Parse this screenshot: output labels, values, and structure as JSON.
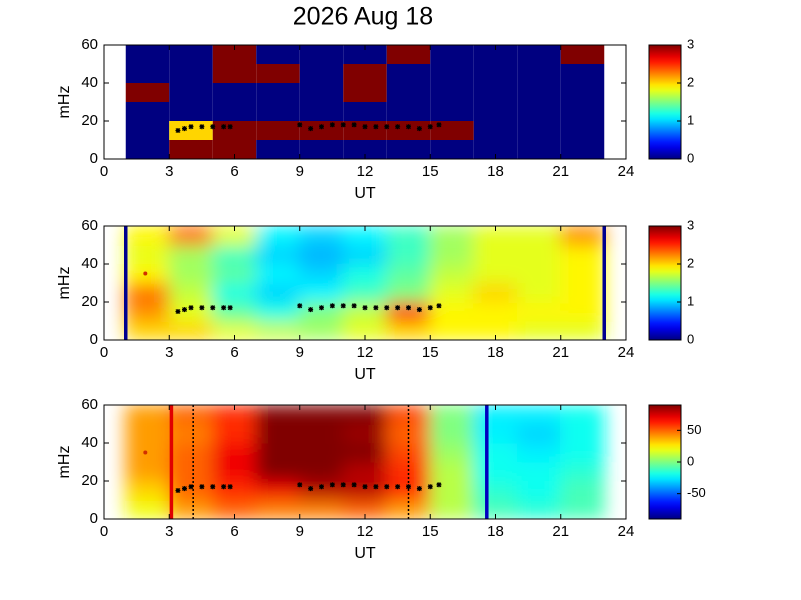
{
  "chart_data": [
    {
      "type": "heatmap",
      "title": "2026 Aug 18",
      "xlabel": "UT",
      "ylabel": "mHz",
      "xlim": [
        0,
        24
      ],
      "xticks": [
        0,
        3,
        6,
        9,
        12,
        15,
        18,
        21,
        24
      ],
      "ylim": [
        0,
        60
      ],
      "yticks": [
        0,
        20,
        40,
        60
      ],
      "clim": [
        0,
        3
      ],
      "cticks": [
        0,
        1,
        2,
        3
      ],
      "smooth": false,
      "x_edges": [
        1,
        3,
        5,
        7,
        9,
        11,
        13,
        15,
        17,
        19,
        21,
        23
      ],
      "y_edges": [
        0,
        10,
        20,
        30,
        40,
        50,
        60
      ],
      "z": [
        [
          0,
          3,
          3,
          0,
          0,
          0,
          0,
          0,
          0,
          0,
          0
        ],
        [
          0,
          2,
          3,
          3,
          3,
          3,
          3,
          3,
          0,
          0,
          0
        ],
        [
          0,
          0,
          0,
          0,
          0,
          0,
          0,
          0,
          0,
          0,
          0
        ],
        [
          3,
          0,
          0,
          0,
          0,
          3,
          0,
          0,
          0,
          0,
          0
        ],
        [
          0,
          0,
          3,
          3,
          0,
          3,
          0,
          0,
          0,
          0,
          0
        ],
        [
          0,
          0,
          3,
          0,
          0,
          0,
          3,
          0,
          0,
          0,
          3
        ]
      ],
      "trace": {
        "color": "#000000",
        "x": [
          3.4,
          3.7,
          4.0,
          4.5,
          5.0,
          5.5,
          5.8,
          7.5,
          9.0,
          9.5,
          10.0,
          10.5,
          11.0,
          11.5,
          12.0,
          12.5,
          13.0,
          13.5,
          14.0,
          14.5,
          15.0,
          15.4
        ],
        "y": [
          15,
          16,
          17,
          17,
          17,
          17,
          17,
          null,
          18,
          16,
          17,
          18,
          18,
          18,
          17,
          17,
          17,
          17,
          17,
          16,
          17,
          18
        ]
      }
    },
    {
      "type": "heatmap",
      "xlabel": "UT",
      "ylabel": "mHz",
      "xlim": [
        0,
        24
      ],
      "xticks": [
        0,
        3,
        6,
        9,
        12,
        15,
        18,
        21,
        24
      ],
      "ylim": [
        0,
        60
      ],
      "yticks": [
        0,
        20,
        40,
        60
      ],
      "clim": [
        0,
        3
      ],
      "cticks": [
        0,
        1,
        2,
        3
      ],
      "smooth": true,
      "x_edges": [
        1,
        3,
        5,
        7,
        9,
        11,
        13,
        15,
        17,
        19,
        21,
        23
      ],
      "y_edges": [
        0,
        10,
        20,
        30,
        40,
        50,
        60
      ],
      "z": [
        [
          2,
          2,
          1.8,
          1.7,
          1.6,
          1.8,
          2.0,
          1.9,
          1.9,
          1.8,
          1.8
        ],
        [
          2.2,
          1.8,
          1.4,
          1.2,
          1.5,
          1.7,
          2.6,
          1.9,
          1.9,
          1.9,
          1.9
        ],
        [
          2.3,
          1.7,
          1.2,
          1.0,
          1.1,
          1.3,
          1.5,
          1.8,
          2.0,
          1.8,
          1.9
        ],
        [
          1.9,
          1.6,
          1.4,
          1.1,
          1.0,
          1.2,
          1.4,
          1.7,
          1.8,
          1.8,
          1.9
        ],
        [
          1.8,
          1.6,
          1.3,
          1.0,
          0.9,
          1.0,
          1.3,
          1.6,
          1.8,
          1.8,
          1.9
        ],
        [
          1.9,
          2.3,
          1.8,
          1.1,
          1.0,
          1.1,
          1.3,
          1.6,
          1.8,
          1.8,
          2.2
        ]
      ],
      "vlines": [
        {
          "x": 1,
          "color": "#00008f",
          "style": "solid"
        },
        {
          "x": 23,
          "color": "#00008f",
          "style": "solid"
        }
      ],
      "points": {
        "color": "#d03000",
        "x": [
          1.9
        ],
        "y": [
          35
        ]
      },
      "trace": {
        "color": "#000000",
        "x": [
          3.4,
          3.7,
          4.0,
          4.5,
          5.0,
          5.5,
          5.8,
          7.5,
          9.0,
          9.5,
          10.0,
          10.5,
          11.0,
          11.5,
          12.0,
          12.5,
          13.0,
          13.5,
          14.0,
          14.5,
          15.0,
          15.4
        ],
        "y": [
          15,
          16,
          17,
          17,
          17,
          17,
          17,
          null,
          18,
          16,
          17,
          18,
          18,
          18,
          17,
          17,
          17,
          17,
          17,
          16,
          17,
          18
        ]
      }
    },
    {
      "type": "heatmap",
      "xlabel": "UT",
      "ylabel": "mHz",
      "xlim": [
        0,
        24
      ],
      "xticks": [
        0,
        3,
        6,
        9,
        12,
        15,
        18,
        21,
        24
      ],
      "ylim": [
        0,
        60
      ],
      "yticks": [
        0,
        20,
        40,
        60
      ],
      "clim": [
        -90,
        90
      ],
      "cticks": [
        -50,
        0,
        50
      ],
      "smooth": true,
      "x_edges": [
        1,
        3,
        5,
        7,
        9,
        11,
        13,
        15,
        17,
        19,
        21,
        23
      ],
      "y_edges": [
        0,
        10,
        20,
        30,
        40,
        50,
        60
      ],
      "z": [
        [
          20,
          40,
          50,
          45,
          45,
          50,
          40,
          10,
          -10,
          -15,
          -10
        ],
        [
          30,
          50,
          60,
          70,
          80,
          80,
          60,
          10,
          -15,
          -20,
          -10
        ],
        [
          40,
          50,
          70,
          90,
          90,
          80,
          60,
          10,
          -20,
          -20,
          -15
        ],
        [
          40,
          50,
          70,
          90,
          90,
          90,
          55,
          5,
          -20,
          -25,
          -20
        ],
        [
          40,
          45,
          60,
          90,
          90,
          85,
          50,
          0,
          -25,
          -30,
          -20
        ],
        [
          40,
          50,
          60,
          90,
          90,
          90,
          55,
          0,
          -25,
          -25,
          -20
        ]
      ],
      "vlines": [
        {
          "x": 3.1,
          "color": "#e00000",
          "style": "solid"
        },
        {
          "x": 4.1,
          "color": "#000000",
          "style": "dotted"
        },
        {
          "x": 14.0,
          "color": "#000000",
          "style": "dotted"
        },
        {
          "x": 17.6,
          "color": "#0000c0",
          "style": "solid"
        }
      ],
      "points": {
        "color": "#d03000",
        "x": [
          1.9
        ],
        "y": [
          35
        ]
      },
      "trace": {
        "color": "#000000",
        "x": [
          3.4,
          3.7,
          4.0,
          4.5,
          5.0,
          5.5,
          5.8,
          7.5,
          9.0,
          9.5,
          10.0,
          10.5,
          11.0,
          11.5,
          12.0,
          12.5,
          13.0,
          13.5,
          14.0,
          14.5,
          15.0,
          15.4
        ],
        "y": [
          15,
          16,
          17,
          17,
          17,
          17,
          17,
          null,
          18,
          16,
          17,
          18,
          18,
          18,
          17,
          17,
          17,
          17,
          17,
          16,
          17,
          18
        ]
      }
    }
  ]
}
